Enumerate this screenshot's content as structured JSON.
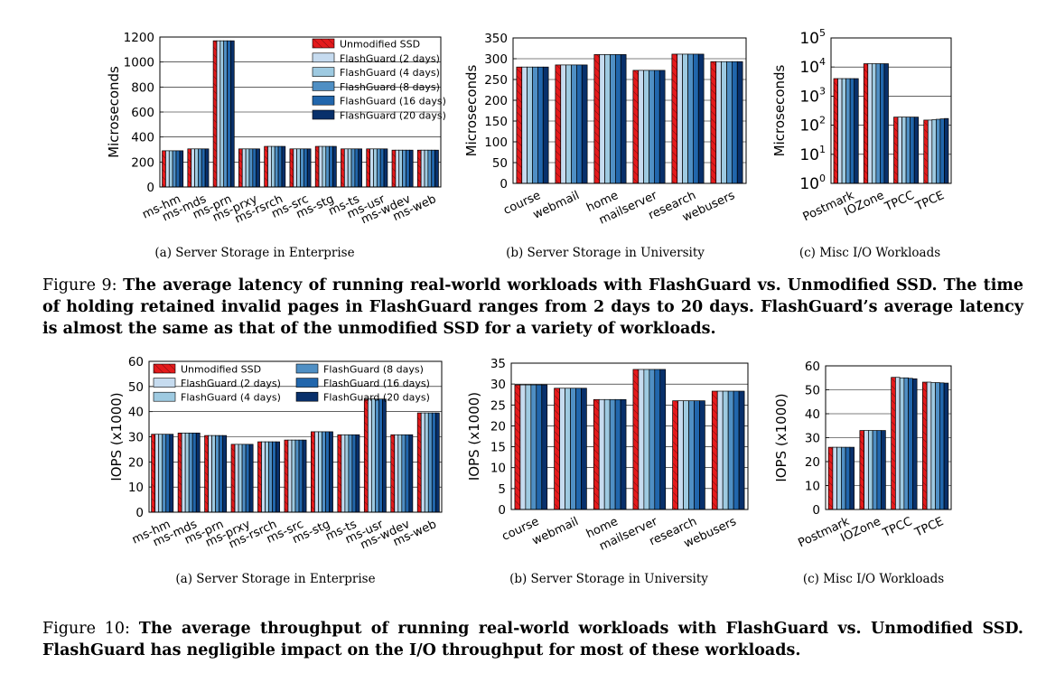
{
  "legend_series": [
    "Unmodified SSD",
    "FlashGuard (2 days)",
    "FlashGuard (4 days)",
    "FlashGuard (8 days)",
    "FlashGuard (16 days)",
    "FlashGuard (20 days)"
  ],
  "colors": {
    "series": [
      "#e41a1c",
      "#c6dbef",
      "#9ecae1",
      "#4f8fc4",
      "#2166ac",
      "#08306b"
    ]
  },
  "figure9": {
    "lead": "Figure 9: ",
    "caption": "The average latency of running real-world workloads with FlashGuard vs. Unmodified SSD. The time of holding retained invalid pages in FlashGuard ranges from 2 days to 20 days. FlashGuard’s average latency is almost the same as that of the unmodified SSD for a variety of workloads."
  },
  "figure10": {
    "lead": "Figure 10: ",
    "caption": "The average throughput of running real-world workloads with FlashGuard vs. Unmodified SSD. FlashGuard has negligible impact on the I/O throughput for most of these workloads."
  },
  "chart_data": [
    {
      "id": "f9a",
      "type": "bar",
      "title": "(a) Server Storage in Enterprise",
      "ylabel": "Microseconds",
      "ylim": [
        0,
        1200
      ],
      "yticks": [
        0,
        200,
        400,
        600,
        800,
        1000,
        1200
      ],
      "legend": "top-right, 1 column",
      "grid": "horizontal",
      "categories": [
        "ms-hm",
        "ms-mds",
        "ms-prn",
        "ms-prxy",
        "ms-rsrch",
        "ms-src",
        "ms-stg",
        "ms-ts",
        "ms-usr",
        "ms-wdev",
        "ms-web"
      ],
      "values": [
        [
          290,
          290,
          290,
          290,
          290,
          290
        ],
        [
          305,
          305,
          305,
          305,
          305,
          305
        ],
        [
          1170,
          1170,
          1170,
          1170,
          1170,
          1170
        ],
        [
          305,
          305,
          305,
          305,
          305,
          305
        ],
        [
          325,
          325,
          325,
          325,
          325,
          325
        ],
        [
          305,
          305,
          305,
          305,
          305,
          305
        ],
        [
          325,
          325,
          325,
          325,
          325,
          325
        ],
        [
          305,
          305,
          305,
          305,
          305,
          305
        ],
        [
          305,
          305,
          305,
          305,
          305,
          305
        ],
        [
          295,
          295,
          295,
          295,
          295,
          295
        ],
        [
          295,
          295,
          295,
          295,
          295,
          295
        ]
      ]
    },
    {
      "id": "f9b",
      "type": "bar",
      "title": "(b) Server Storage in University",
      "ylabel": "Microseconds",
      "ylim": [
        0,
        350
      ],
      "yticks": [
        0,
        50,
        100,
        150,
        200,
        250,
        300,
        350
      ],
      "grid": "horizontal",
      "categories": [
        "course",
        "webmail",
        "home",
        "mailserver",
        "research",
        "webusers"
      ],
      "values": [
        [
          280,
          280,
          280,
          280,
          280,
          280
        ],
        [
          285,
          285,
          285,
          285,
          285,
          285
        ],
        [
          310,
          310,
          310,
          310,
          310,
          310
        ],
        [
          272,
          272,
          272,
          272,
          272,
          272
        ],
        [
          311,
          311,
          311,
          311,
          311,
          311
        ],
        [
          293,
          293,
          293,
          293,
          293,
          293
        ]
      ]
    },
    {
      "id": "f9c",
      "type": "bar",
      "title": "(c) Misc I/O Workloads",
      "ylabel": "Microseconds",
      "scale": "log",
      "ylim": [
        1,
        100000
      ],
      "yticks": [
        1,
        10,
        100,
        1000,
        10000,
        100000
      ],
      "grid": "horizontal",
      "categories": [
        "Postmark",
        "IOZone",
        "TPCC",
        "TPCE"
      ],
      "values": [
        [
          4000,
          4000,
          4000,
          4000,
          4000,
          4000
        ],
        [
          13000,
          13000,
          13000,
          13000,
          13000,
          13000
        ],
        [
          190,
          190,
          190,
          190,
          190,
          190
        ],
        [
          150,
          150,
          155,
          160,
          165,
          170
        ]
      ]
    },
    {
      "id": "f10a",
      "type": "bar",
      "title": "(a) Server Storage in Enterprise",
      "ylabel": "IOPS (x1000)",
      "ylim": [
        0,
        60
      ],
      "yticks": [
        0,
        10,
        20,
        30,
        40,
        50,
        60
      ],
      "legend": "top, 2 columns",
      "grid": "horizontal",
      "categories": [
        "ms-hm",
        "ms-mds",
        "ms-prn",
        "ms-prxy",
        "ms-rsrch",
        "ms-src",
        "ms-stg",
        "ms-ts",
        "ms-usr",
        "ms-wdev",
        "ms-web"
      ],
      "values": [
        [
          31,
          31,
          31,
          31,
          31,
          31
        ],
        [
          31.5,
          31.5,
          31.5,
          31.5,
          31.5,
          31.5
        ],
        [
          30.5,
          30.5,
          30.5,
          30.5,
          30.5,
          30.5
        ],
        [
          27,
          27,
          27,
          27,
          27,
          27
        ],
        [
          28,
          28,
          28,
          28,
          28,
          28
        ],
        [
          28.7,
          28.7,
          28.7,
          28.7,
          28.7,
          28.7
        ],
        [
          32,
          32,
          32,
          32,
          32,
          32
        ],
        [
          30.8,
          30.8,
          30.8,
          30.8,
          30.8,
          30.8
        ],
        [
          45,
          45,
          45,
          45,
          45,
          45
        ],
        [
          30.8,
          30.8,
          30.8,
          30.8,
          30.8,
          30.8
        ],
        [
          39.5,
          39.5,
          39.5,
          39.5,
          39.5,
          39.5
        ]
      ]
    },
    {
      "id": "f10b",
      "type": "bar",
      "title": "(b) Server Storage in University",
      "ylabel": "IOPS (x1000)",
      "ylim": [
        0,
        35
      ],
      "yticks": [
        0,
        5,
        10,
        15,
        20,
        25,
        30,
        35
      ],
      "grid": "horizontal",
      "categories": [
        "course",
        "webmail",
        "home",
        "mailserver",
        "research",
        "webusers"
      ],
      "values": [
        [
          29.8,
          29.8,
          29.8,
          29.8,
          29.8,
          29.8
        ],
        [
          29,
          29,
          29,
          29,
          29,
          29
        ],
        [
          26.3,
          26.3,
          26.3,
          26.3,
          26.3,
          26.3
        ],
        [
          33.5,
          33.5,
          33.5,
          33.5,
          33.5,
          33.5
        ],
        [
          26,
          26,
          26,
          26,
          26,
          26
        ],
        [
          28.3,
          28.3,
          28.3,
          28.3,
          28.3,
          28.3
        ]
      ]
    },
    {
      "id": "f10c",
      "type": "bar",
      "title": "(c) Misc I/O Workloads",
      "ylabel": "IOPS (x1000)",
      "ylim": [
        0,
        60
      ],
      "yticks": [
        0,
        10,
        20,
        30,
        40,
        50,
        60
      ],
      "grid": "horizontal",
      "categories": [
        "Postmark",
        "IOZone",
        "TPCC",
        "TPCE"
      ],
      "values": [
        [
          26,
          26,
          26,
          26,
          26,
          26
        ],
        [
          33,
          33,
          33,
          33,
          33,
          33
        ],
        [
          55.2,
          55.2,
          55,
          55,
          54.8,
          54.6
        ],
        [
          53.2,
          53.2,
          53,
          53,
          52.9,
          52.8
        ]
      ]
    }
  ]
}
